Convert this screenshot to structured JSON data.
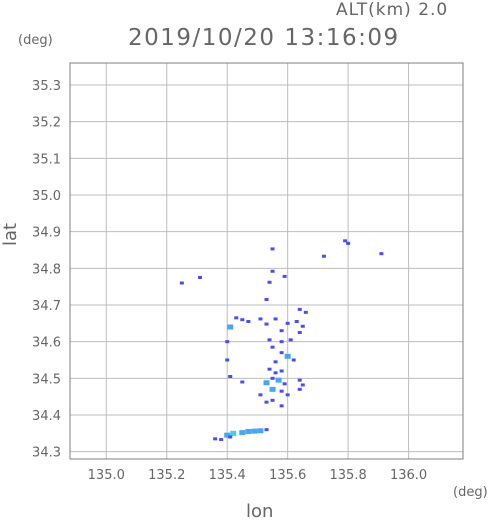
{
  "header": {
    "altitude_label": "ALT(km)  2.0",
    "datetime": "2019/10/20 13:16:09"
  },
  "chart_data": {
    "type": "heatmap",
    "title": "2019/10/20 13:16:09",
    "xlabel": "lon",
    "ylabel": "lat",
    "x_unit": "(deg)",
    "y_unit": "(deg)",
    "xlim": [
      134.88,
      136.18
    ],
    "ylim": [
      34.28,
      35.36
    ],
    "xticks": [
      "135.0",
      "135.2",
      "135.4",
      "135.6",
      "135.8",
      "136.0"
    ],
    "xtick_values": [
      135.0,
      135.2,
      135.4,
      135.6,
      135.8,
      136.0
    ],
    "yticks": [
      "34.3",
      "34.4",
      "34.5",
      "34.6",
      "34.7",
      "34.8",
      "34.9",
      "35.0",
      "35.1",
      "35.2",
      "35.3"
    ],
    "ytick_values": [
      34.3,
      34.4,
      34.5,
      34.6,
      34.7,
      34.8,
      34.9,
      35.0,
      35.1,
      35.2,
      35.3
    ],
    "grid": true,
    "colors": {
      "low": "#4a4ef0",
      "mid": "#4aa6f2",
      "high": "#3fd0e8",
      "frame": "#7f7f7f",
      "grid": "#bdbdbd"
    },
    "echoes": [
      {
        "lon": 135.25,
        "lat": 34.76,
        "level": "low"
      },
      {
        "lon": 135.31,
        "lat": 34.775,
        "level": "low"
      },
      {
        "lon": 135.55,
        "lat": 34.853,
        "level": "low"
      },
      {
        "lon": 135.55,
        "lat": 34.792,
        "level": "low"
      },
      {
        "lon": 135.54,
        "lat": 34.762,
        "level": "low"
      },
      {
        "lon": 135.59,
        "lat": 34.778,
        "level": "low"
      },
      {
        "lon": 135.72,
        "lat": 34.833,
        "level": "low"
      },
      {
        "lon": 135.79,
        "lat": 34.875,
        "level": "low"
      },
      {
        "lon": 135.8,
        "lat": 34.868,
        "level": "low"
      },
      {
        "lon": 135.91,
        "lat": 34.84,
        "level": "low"
      },
      {
        "lon": 135.53,
        "lat": 34.715,
        "level": "low"
      },
      {
        "lon": 135.64,
        "lat": 34.688,
        "level": "low"
      },
      {
        "lon": 135.66,
        "lat": 34.68,
        "level": "low"
      },
      {
        "lon": 135.43,
        "lat": 34.665,
        "level": "low"
      },
      {
        "lon": 135.45,
        "lat": 34.66,
        "level": "low"
      },
      {
        "lon": 135.47,
        "lat": 34.655,
        "level": "low"
      },
      {
        "lon": 135.51,
        "lat": 34.662,
        "level": "low"
      },
      {
        "lon": 135.53,
        "lat": 34.648,
        "level": "low"
      },
      {
        "lon": 135.56,
        "lat": 34.662,
        "level": "low"
      },
      {
        "lon": 135.6,
        "lat": 34.65,
        "level": "low"
      },
      {
        "lon": 135.63,
        "lat": 34.655,
        "level": "low"
      },
      {
        "lon": 135.65,
        "lat": 34.642,
        "level": "low"
      },
      {
        "lon": 135.41,
        "lat": 34.64,
        "level": "mid"
      },
      {
        "lon": 135.58,
        "lat": 34.63,
        "level": "low"
      },
      {
        "lon": 135.64,
        "lat": 34.625,
        "level": "low"
      },
      {
        "lon": 135.4,
        "lat": 34.6,
        "level": "low"
      },
      {
        "lon": 135.54,
        "lat": 34.605,
        "level": "low"
      },
      {
        "lon": 135.58,
        "lat": 34.6,
        "level": "low"
      },
      {
        "lon": 135.61,
        "lat": 34.605,
        "level": "low"
      },
      {
        "lon": 135.55,
        "lat": 34.585,
        "level": "low"
      },
      {
        "lon": 135.58,
        "lat": 34.57,
        "level": "low"
      },
      {
        "lon": 135.6,
        "lat": 34.56,
        "level": "mid"
      },
      {
        "lon": 135.62,
        "lat": 34.55,
        "level": "low"
      },
      {
        "lon": 135.56,
        "lat": 34.545,
        "level": "low"
      },
      {
        "lon": 135.4,
        "lat": 34.55,
        "level": "low"
      },
      {
        "lon": 135.54,
        "lat": 34.525,
        "level": "low"
      },
      {
        "lon": 135.56,
        "lat": 34.515,
        "level": "low"
      },
      {
        "lon": 135.58,
        "lat": 34.52,
        "level": "low"
      },
      {
        "lon": 135.55,
        "lat": 34.5,
        "level": "low"
      },
      {
        "lon": 135.57,
        "lat": 34.495,
        "level": "mid"
      },
      {
        "lon": 135.53,
        "lat": 34.488,
        "level": "mid"
      },
      {
        "lon": 135.59,
        "lat": 34.485,
        "level": "low"
      },
      {
        "lon": 135.41,
        "lat": 34.505,
        "level": "low"
      },
      {
        "lon": 135.45,
        "lat": 34.49,
        "level": "low"
      },
      {
        "lon": 135.55,
        "lat": 34.47,
        "level": "mid"
      },
      {
        "lon": 135.58,
        "lat": 34.465,
        "level": "low"
      },
      {
        "lon": 135.64,
        "lat": 34.495,
        "level": "low"
      },
      {
        "lon": 135.65,
        "lat": 34.482,
        "level": "low"
      },
      {
        "lon": 135.64,
        "lat": 34.47,
        "level": "low"
      },
      {
        "lon": 135.6,
        "lat": 34.455,
        "level": "low"
      },
      {
        "lon": 135.53,
        "lat": 34.435,
        "level": "low"
      },
      {
        "lon": 135.58,
        "lat": 34.425,
        "level": "low"
      },
      {
        "lon": 135.55,
        "lat": 34.44,
        "level": "low"
      },
      {
        "lon": 135.51,
        "lat": 34.455,
        "level": "low"
      },
      {
        "lon": 135.4,
        "lat": 34.345,
        "level": "mid"
      },
      {
        "lon": 135.42,
        "lat": 34.35,
        "level": "high"
      },
      {
        "lon": 135.45,
        "lat": 34.352,
        "level": "mid"
      },
      {
        "lon": 135.47,
        "lat": 34.355,
        "level": "mid"
      },
      {
        "lon": 135.49,
        "lat": 34.356,
        "level": "mid"
      },
      {
        "lon": 135.51,
        "lat": 34.357,
        "level": "mid"
      },
      {
        "lon": 135.53,
        "lat": 34.36,
        "level": "low"
      },
      {
        "lon": 135.36,
        "lat": 34.335,
        "level": "low"
      },
      {
        "lon": 135.38,
        "lat": 34.333,
        "level": "low"
      },
      {
        "lon": 135.41,
        "lat": 34.34,
        "level": "low"
      }
    ]
  }
}
